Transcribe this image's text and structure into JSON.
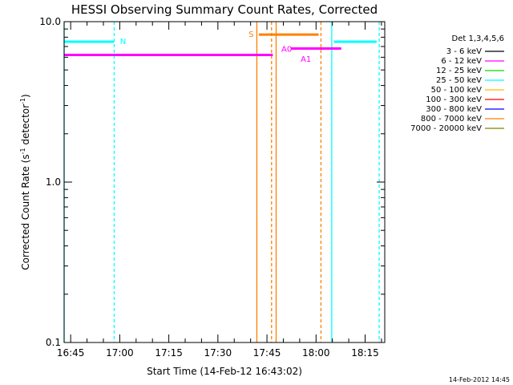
{
  "chart_data": {
    "type": "line",
    "title": "HESSI Observing Summary Count Rates, Corrected",
    "xlabel": "Start Time (14-Feb-12 16:43:02)",
    "ylabel_main": "Corrected Count Rate (s",
    "ylabel_sup1": "-1",
    "ylabel_mid": " detector",
    "ylabel_sup2": "-1",
    "ylabel_end": ")",
    "y_scale": "log",
    "ylim": [
      0.1,
      10.0
    ],
    "xlim_minutes": [
      0,
      98
    ],
    "x_ticks": [
      {
        "label": "16:45",
        "min": 2
      },
      {
        "label": "17:00",
        "min": 17
      },
      {
        "label": "17:15",
        "min": 32
      },
      {
        "label": "17:30",
        "min": 47
      },
      {
        "label": "17:45",
        "min": 62
      },
      {
        "label": "18:00",
        "min": 77
      },
      {
        "label": "18:15",
        "min": 92
      }
    ],
    "y_ticks": [
      {
        "label": "0.1",
        "value": 0.1
      },
      {
        "label": "1.0",
        "value": 1.0
      },
      {
        "label": "10.0",
        "value": 10.0
      }
    ],
    "legend_title": "Det 1,3,4,5,6",
    "legend": [
      {
        "label": "3 - 6 keV",
        "color": "#000000"
      },
      {
        "label": "6 - 12 keV",
        "color": "#ff00ff"
      },
      {
        "label": "12 - 25 keV",
        "color": "#00dd00"
      },
      {
        "label": "25 - 50 keV",
        "color": "#00ffff"
      },
      {
        "label": "50 - 100 keV",
        "color": "#ffbb00"
      },
      {
        "label": "100 - 300 keV",
        "color": "#ff0000"
      },
      {
        "label": "300 - 800 keV",
        "color": "#0000ff"
      },
      {
        "label": "800 - 7000 keV",
        "color": "#ff8000"
      },
      {
        "label": "7000 - 20000 keV",
        "color": "#808000"
      }
    ],
    "series": [
      {
        "color": "#00ffff",
        "segments": [
          [
            0,
            15.3
          ],
          [
            82.5,
            95.5
          ]
        ],
        "value": 7.5
      },
      {
        "color": "#ff00ff",
        "segments": [
          [
            0,
            63.8
          ]
        ],
        "value": 6.2
      },
      {
        "color": "#ff00ff",
        "segments": [
          [
            69.3,
            84.7
          ]
        ],
        "value": 6.8
      },
      {
        "color": "#ff8000",
        "segments": [
          [
            59.5,
            77.8
          ]
        ],
        "value": 8.3
      }
    ],
    "markers": [
      {
        "kind": "night",
        "color": "#00ffff",
        "dashed": false,
        "min": 0
      },
      {
        "kind": "night",
        "color": "#00ffff",
        "dashed": true,
        "min": 15.3
      },
      {
        "kind": "night",
        "color": "#00ffff",
        "dashed": false,
        "min": 81.8
      },
      {
        "kind": "night",
        "color": "#00ffff",
        "dashed": true,
        "min": 96.3
      },
      {
        "kind": "saa",
        "color": "#ff8000",
        "dashed": false,
        "min": 58.9
      },
      {
        "kind": "saa",
        "color": "#ff8000",
        "dashed": true,
        "min": 63.4
      },
      {
        "kind": "saa",
        "color": "#ff8000",
        "dashed": false,
        "min": 64.8
      },
      {
        "kind": "saa",
        "color": "#ff8000",
        "dashed": true,
        "min": 78.5
      }
    ],
    "annotations": [
      {
        "text": "N",
        "color": "#00ffff",
        "min": 17.1,
        "value": 7.6
      },
      {
        "text": "S",
        "color": "#ff8000",
        "min": 56.4,
        "value": 8.4
      },
      {
        "text": "A0",
        "color": "#ff00ff",
        "min": 66.4,
        "value": 6.8
      },
      {
        "text": "A1",
        "color": "#ff00ff",
        "min": 72.3,
        "value": 5.9
      }
    ],
    "timestamp": "14-Feb-2012 14:45"
  }
}
